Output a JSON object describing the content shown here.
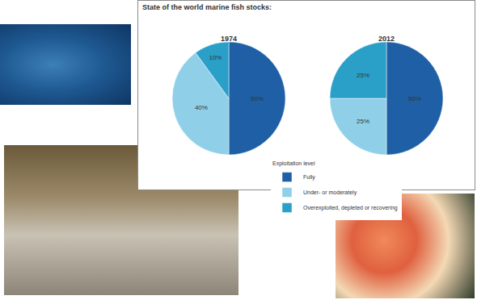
{
  "title": "State of the world marine fish stocks:",
  "legend_title": "Exploitation level",
  "chart_data": [
    {
      "type": "pie",
      "title": "1974",
      "categories": [
        "Fully",
        "Under- or moderately",
        "Overexploited, depleted or recovering"
      ],
      "values": [
        50,
        40,
        10
      ],
      "value_labels": [
        "50%",
        "40%",
        "10%"
      ],
      "colors": [
        "#1f5fa6",
        "#8fd0e8",
        "#2aa0c8"
      ],
      "data_labels": true,
      "legend": "bottom"
    },
    {
      "type": "pie",
      "title": "2012",
      "categories": [
        "Fully",
        "Under- or moderately",
        "Overexploited, depleted or recovering"
      ],
      "values": [
        50,
        25,
        25
      ],
      "value_labels": [
        "50%",
        "25%",
        "25%"
      ],
      "colors": [
        "#1f5fa6",
        "#8fd0e8",
        "#2aa0c8"
      ],
      "data_labels": true,
      "legend": "bottom"
    }
  ]
}
